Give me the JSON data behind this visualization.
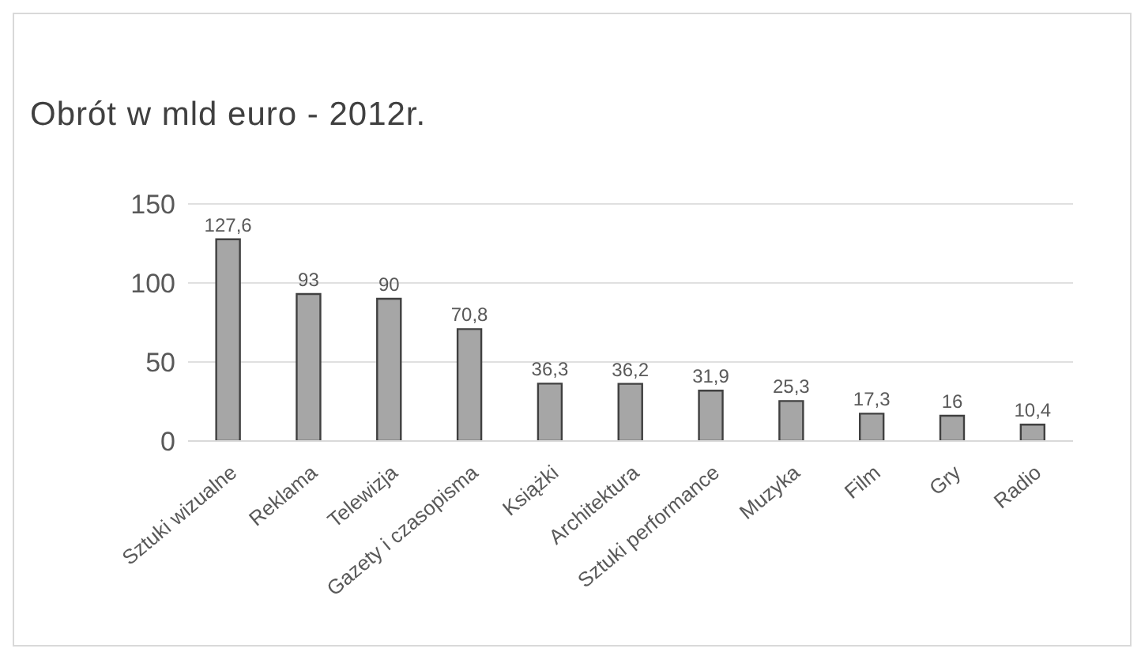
{
  "chart_data": {
    "type": "bar",
    "title": "Obrót w mld euro - 2012r.",
    "categories": [
      "Sztuki wizualne",
      "Reklama",
      "Telewizja",
      "Gazety i czasopisma",
      "Książki",
      "Architektura",
      "Sztuki performance",
      "Muzyka",
      "Film",
      "Gry",
      "Radio"
    ],
    "values": [
      127.6,
      93,
      90,
      70.8,
      36.3,
      36.2,
      31.9,
      25.3,
      17.3,
      16,
      10.4
    ],
    "value_labels": [
      "127,6",
      "93",
      "90",
      "70,8",
      "36,3",
      "36,2",
      "31,9",
      "25,3",
      "17,3",
      "16",
      "10,4"
    ],
    "color": "#a6a6a6",
    "ylim": [
      0,
      150
    ],
    "yticks": [
      0,
      50,
      100,
      150
    ],
    "grid": "y"
  }
}
